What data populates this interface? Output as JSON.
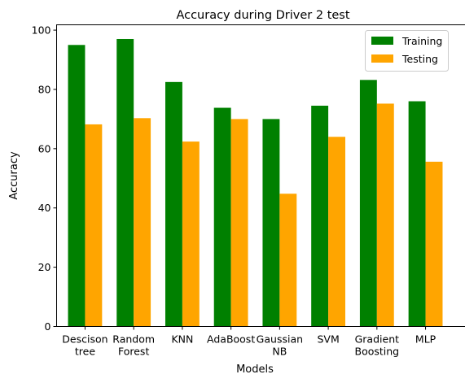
{
  "chart_data": {
    "type": "bar",
    "title": "Accuracy during Driver 2 test",
    "xlabel": "Models",
    "ylabel": "Accuracy",
    "categories": [
      [
        "Descison",
        "tree"
      ],
      [
        "Random",
        "Forest"
      ],
      [
        "KNN"
      ],
      [
        "AdaBoost"
      ],
      [
        "Gaussian",
        "NB"
      ],
      [
        "SVM"
      ],
      [
        "Gradient",
        "Boosting"
      ],
      [
        "MLP"
      ]
    ],
    "series": [
      {
        "name": "Training",
        "color": "#008000",
        "values": [
          95.0,
          97.0,
          82.5,
          73.8,
          70.0,
          74.5,
          83.2,
          76.0
        ]
      },
      {
        "name": "Testing",
        "color": "#ffa500",
        "values": [
          68.2,
          70.3,
          62.4,
          70.0,
          44.8,
          64.0,
          75.2,
          55.6
        ]
      }
    ],
    "ylim": [
      0,
      101.8
    ],
    "yticks": [
      "0",
      "20",
      "40",
      "60",
      "80",
      "100"
    ],
    "grid": false,
    "legend_position": "top-right"
  }
}
